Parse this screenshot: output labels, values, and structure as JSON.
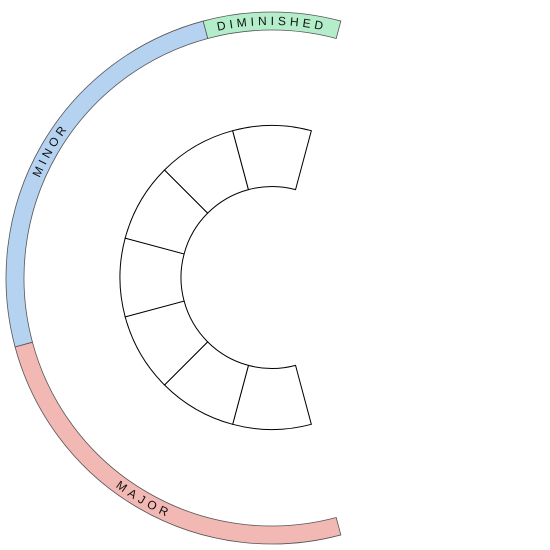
{
  "outer_ring": [
    {
      "label": "MAJOR"
    },
    {
      "label": "MINOR"
    },
    {
      "label": "DIMINISHED"
    }
  ]
}
